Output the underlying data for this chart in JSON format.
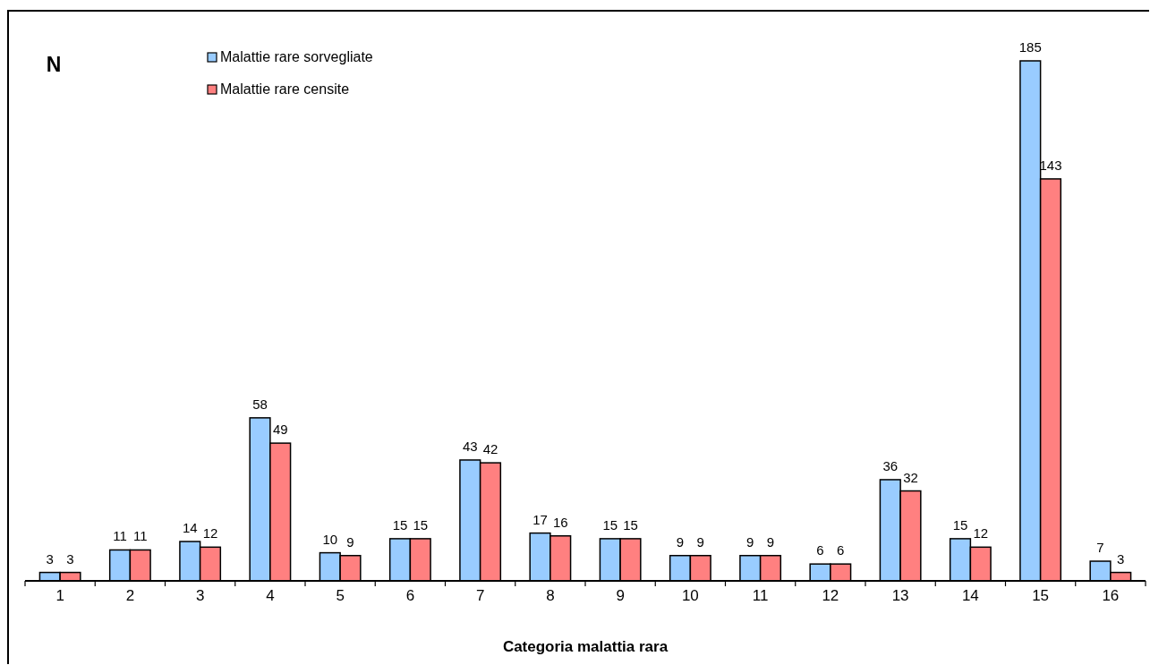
{
  "chart_data": {
    "type": "bar",
    "ylabel": "N",
    "xlabel": "Categoria malattia rara",
    "categories": [
      "1",
      "2",
      "3",
      "4",
      "5",
      "6",
      "7",
      "8",
      "9",
      "10",
      "11",
      "12",
      "13",
      "14",
      "15",
      "16"
    ],
    "series": [
      {
        "name": "Malattie rare sorvegliate",
        "color": "#99ccff",
        "values": [
          3,
          11,
          14,
          58,
          10,
          15,
          43,
          17,
          15,
          9,
          9,
          6,
          36,
          15,
          185,
          7
        ]
      },
      {
        "name": "Malattie rare censite",
        "color": "#ff8080",
        "values": [
          3,
          11,
          12,
          49,
          9,
          15,
          42,
          16,
          15,
          9,
          9,
          6,
          32,
          12,
          143,
          3
        ]
      }
    ],
    "data_labels": true,
    "legend": "top left"
  }
}
